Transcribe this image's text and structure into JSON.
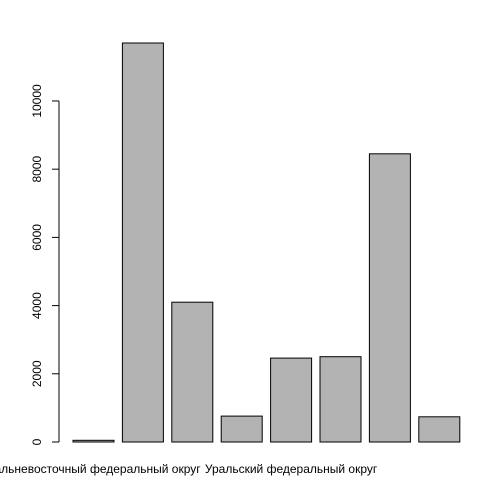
{
  "chart_data": {
    "type": "bar",
    "title": "",
    "xlabel": "",
    "ylabel": "",
    "ylim": [
      0,
      11700
    ],
    "yticks": [
      0,
      2000,
      4000,
      6000,
      8000,
      10000
    ],
    "bar_color": "#b3b3b3",
    "bar_border": "#000000",
    "axis_color": "#000000",
    "grid": false,
    "legend": "none",
    "values": [
      50,
      11700,
      4100,
      760,
      2460,
      2500,
      8450,
      740
    ],
    "shown_category_labels": [
      {
        "bar_index": 0,
        "label": "Дальневосточный федеральный округ"
      },
      {
        "bar_index": 4,
        "label": "Уральский федеральный округ"
      }
    ]
  }
}
